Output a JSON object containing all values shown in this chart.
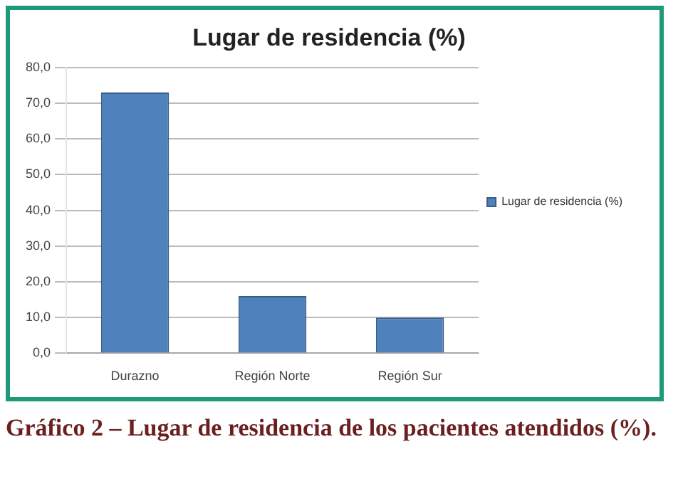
{
  "chart_data": {
    "type": "bar",
    "title": "Lugar de residencia (%)",
    "categories": [
      "Durazno",
      "Región Norte",
      "Región Sur"
    ],
    "series": [
      {
        "name": "Lugar de residencia (%)",
        "color": "#4f81bd",
        "values": [
          73,
          16,
          10
        ]
      }
    ],
    "ylim": [
      0,
      80
    ],
    "yticks": [
      {
        "value": 0,
        "label": "0,0"
      },
      {
        "value": 10,
        "label": "10,0"
      },
      {
        "value": 20,
        "label": "20,0"
      },
      {
        "value": 30,
        "label": "30,0"
      },
      {
        "value": 40,
        "label": "40,0"
      },
      {
        "value": 50,
        "label": "50,0"
      },
      {
        "value": 60,
        "label": "60,0"
      },
      {
        "value": 70,
        "label": "70,0"
      },
      {
        "value": 80,
        "label": "80,0"
      }
    ],
    "grid": "y",
    "legend": "right",
    "annotations": [
      "Gráfico 2 – Lugar de residencia de los pacientes atendidos (%)."
    ]
  }
}
